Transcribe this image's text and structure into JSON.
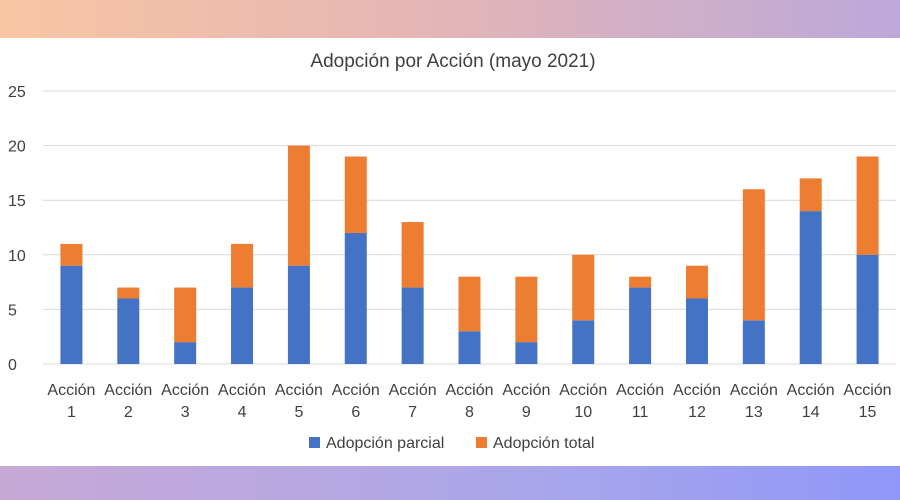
{
  "chart_data": {
    "type": "bar",
    "stacked": true,
    "title": "Adopción por Acción (mayo 2021)",
    "xlabel": "",
    "ylabel": "",
    "categories": [
      "Acción 1",
      "Acción 2",
      "Acción 3",
      "Acción 4",
      "Acción 5",
      "Acción 6",
      "Acción 7",
      "Acción 8",
      "Acción 9",
      "Acción 10",
      "Acción 11",
      "Acción 12",
      "Acción 13",
      "Acción 14",
      "Acción 15"
    ],
    "series": [
      {
        "name": "Adopción parcial",
        "color": "#4472c4",
        "values": [
          9,
          6,
          2,
          7,
          9,
          12,
          7,
          3,
          2,
          4,
          7,
          6,
          4,
          14,
          10
        ]
      },
      {
        "name": "Adopción total",
        "color": "#ed7d31",
        "values": [
          2,
          1,
          5,
          4,
          11,
          7,
          6,
          5,
          6,
          6,
          1,
          3,
          12,
          3,
          9
        ]
      }
    ],
    "ylim": [
      0,
      25
    ],
    "yticks": [
      0,
      5,
      10,
      15,
      20,
      25
    ],
    "grid": true,
    "legend": "bottom"
  }
}
